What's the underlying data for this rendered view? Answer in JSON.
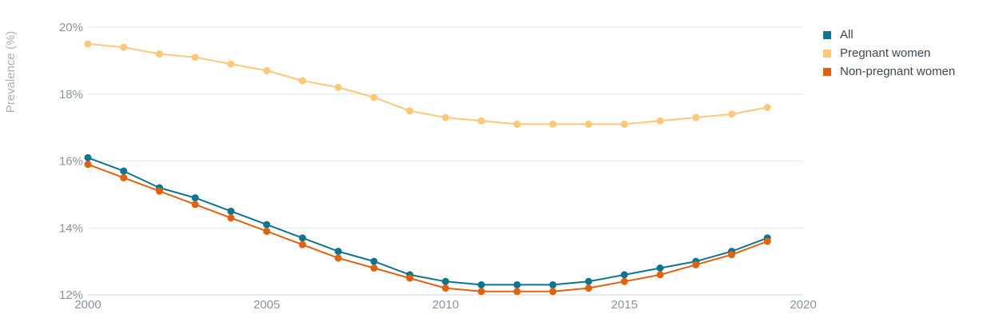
{
  "chart_data": {
    "type": "line",
    "ylabel": "Prevalence (%)",
    "xlabel": "",
    "xlim": [
      2000,
      2020
    ],
    "ylim": [
      12,
      20
    ],
    "x_ticks": [
      2000,
      2005,
      2010,
      2015,
      2020
    ],
    "x_tick_labels": [
      "2000",
      "2005",
      "2010",
      "2015",
      "2020"
    ],
    "y_ticks": [
      12,
      14,
      16,
      18,
      20
    ],
    "y_tick_labels": [
      "12%",
      "14%",
      "16%",
      "18%",
      "20%"
    ],
    "grid": true,
    "legend_position": "top-right",
    "x": [
      2000,
      2001,
      2002,
      2003,
      2004,
      2005,
      2006,
      2007,
      2008,
      2009,
      2010,
      2011,
      2012,
      2013,
      2014,
      2015,
      2016,
      2017,
      2018,
      2019
    ],
    "series": [
      {
        "name": "All",
        "color": "#0e7490",
        "values": [
          16.1,
          15.7,
          15.2,
          14.9,
          14.5,
          14.1,
          13.7,
          13.3,
          13.0,
          12.6,
          12.4,
          12.3,
          12.3,
          12.3,
          12.4,
          12.6,
          12.8,
          13.0,
          13.3,
          13.7
        ]
      },
      {
        "name": "Pregnant women",
        "color": "#fbc77b",
        "values": [
          19.5,
          19.4,
          19.2,
          19.1,
          18.9,
          18.7,
          18.4,
          18.2,
          17.9,
          17.5,
          17.3,
          17.2,
          17.1,
          17.1,
          17.1,
          17.1,
          17.2,
          17.3,
          17.4,
          17.6
        ]
      },
      {
        "name": "Non-pregnant women",
        "color": "#e0620e",
        "values": [
          15.9,
          15.5,
          15.1,
          14.7,
          14.3,
          13.9,
          13.5,
          13.1,
          12.8,
          12.5,
          12.2,
          12.1,
          12.1,
          12.1,
          12.2,
          12.4,
          12.6,
          12.9,
          13.2,
          13.6
        ]
      }
    ]
  }
}
